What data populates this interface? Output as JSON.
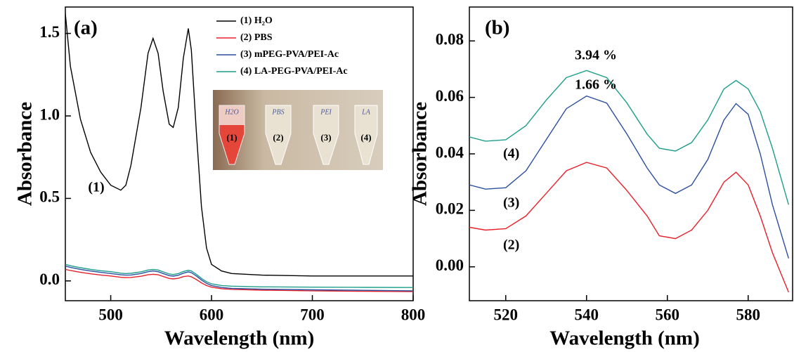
{
  "chart_data": [
    {
      "type": "line",
      "panel_label": "(a)",
      "xlabel": "Wavelength (nm)",
      "ylabel": "Absorbance",
      "x": [
        455,
        460,
        470,
        480,
        490,
        500,
        510,
        515,
        520,
        530,
        537,
        542,
        547,
        552,
        558,
        562,
        567,
        572,
        577,
        580,
        585,
        590,
        595,
        600,
        610,
        620,
        650,
        700,
        750,
        800
      ],
      "xlim": [
        455,
        800
      ],
      "xticks": [
        500,
        600,
        700,
        800
      ],
      "ylim": [
        -0.12,
        1.66
      ],
      "yticks": [
        {
          "value": 0,
          "label": "0.0"
        },
        0.5,
        {
          "value": 1,
          "label": "1.0"
        },
        1.5
      ],
      "legend": "upper right",
      "series": [
        {
          "name": "(1) H₂O",
          "color": "#000000",
          "values": [
            1.62,
            1.3,
            0.98,
            0.78,
            0.66,
            0.58,
            0.55,
            0.58,
            0.7,
            1.05,
            1.38,
            1.47,
            1.38,
            1.15,
            0.95,
            0.93,
            1.05,
            1.35,
            1.53,
            1.4,
            0.9,
            0.45,
            0.2,
            0.1,
            0.06,
            0.045,
            0.035,
            0.03,
            0.03,
            0.03
          ]
        },
        {
          "name": "(2) PBS",
          "color": "#e8202a",
          "values": [
            0.07,
            0.063,
            0.052,
            0.043,
            0.036,
            0.03,
            0.022,
            0.02,
            0.021,
            0.028,
            0.037,
            0.04,
            0.037,
            0.027,
            0.015,
            0.012,
            0.016,
            0.026,
            0.03,
            0.025,
            0.008,
            -0.012,
            -0.028,
            -0.038,
            -0.047,
            -0.051,
            -0.056,
            -0.06,
            -0.063,
            -0.065
          ]
        },
        {
          "name": "(3) mPEG-PVA/PEI-Ac",
          "color": "#2b4fa0",
          "values": [
            0.09,
            0.082,
            0.07,
            0.06,
            0.052,
            0.045,
            0.037,
            0.035,
            0.036,
            0.045,
            0.056,
            0.06,
            0.056,
            0.045,
            0.032,
            0.029,
            0.034,
            0.047,
            0.055,
            0.05,
            0.03,
            0.005,
            -0.015,
            -0.028,
            -0.04,
            -0.045,
            -0.05,
            -0.054,
            -0.057,
            -0.06
          ]
        },
        {
          "name": "(4) LA-PEG-PVA/PEI-Ac",
          "color": "#1d9e8a",
          "values": [
            0.1,
            0.092,
            0.08,
            0.07,
            0.062,
            0.056,
            0.047,
            0.045,
            0.046,
            0.055,
            0.066,
            0.07,
            0.066,
            0.055,
            0.042,
            0.039,
            0.044,
            0.057,
            0.065,
            0.06,
            0.04,
            0.015,
            -0.005,
            -0.018,
            -0.028,
            -0.032,
            -0.036,
            -0.038,
            -0.039,
            -0.04
          ]
        }
      ],
      "annotations": [
        "(1)"
      ],
      "inset": {
        "tube_numbers": [
          "(1)",
          "(2)",
          "(3)",
          "(4)"
        ],
        "tube_captions": [
          "H2O",
          "PBS",
          "PEI",
          "LA"
        ]
      }
    },
    {
      "type": "line",
      "panel_label": "(b)",
      "xlabel": "Wavelength (nm)",
      "ylabel": "Absorbance",
      "x": [
        511,
        515,
        520,
        525,
        530,
        535,
        540,
        545,
        550,
        555,
        558,
        562,
        566,
        570,
        574,
        577,
        580,
        583,
        586,
        590
      ],
      "xlim": [
        511,
        591
      ],
      "xticks": [
        520,
        540,
        560,
        580
      ],
      "ylim": [
        -0.012,
        0.092
      ],
      "yticks": [
        {
          "value": 0,
          "label": "0.00"
        },
        0.02,
        0.04,
        0.06,
        0.08
      ],
      "legend": false,
      "series": [
        {
          "name": "(2)",
          "color": "#e8202a",
          "values": [
            0.014,
            0.013,
            0.0135,
            0.018,
            0.026,
            0.034,
            0.037,
            0.035,
            0.027,
            0.018,
            0.011,
            0.01,
            0.013,
            0.02,
            0.03,
            0.0335,
            0.029,
            0.018,
            0.005,
            -0.009
          ]
        },
        {
          "name": "(3)",
          "color": "#2b4fa0",
          "values": [
            0.029,
            0.0275,
            0.028,
            0.034,
            0.045,
            0.056,
            0.0605,
            0.058,
            0.047,
            0.035,
            0.029,
            0.026,
            0.029,
            0.038,
            0.052,
            0.0578,
            0.054,
            0.04,
            0.022,
            0.003
          ]
        },
        {
          "name": "(4)",
          "color": "#1d9e8a",
          "values": [
            0.046,
            0.0445,
            0.045,
            0.05,
            0.059,
            0.067,
            0.0695,
            0.067,
            0.058,
            0.047,
            0.042,
            0.041,
            0.044,
            0.052,
            0.063,
            0.066,
            0.063,
            0.055,
            0.042,
            0.022
          ]
        }
      ],
      "annotations": [
        "3.94 %",
        "1.66 %"
      ]
    }
  ]
}
